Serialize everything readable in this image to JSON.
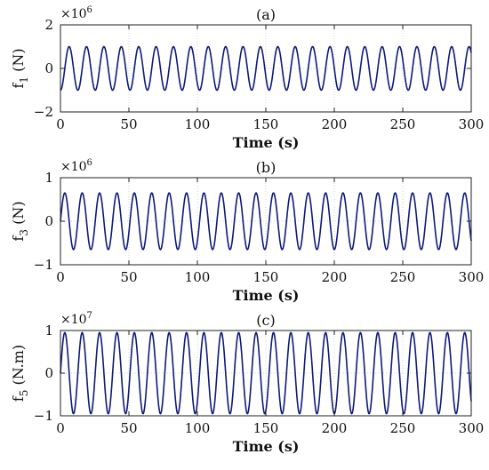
{
  "figure": {
    "line_color": "#0d1a7a",
    "grid": true
  },
  "chart_data": [
    {
      "type": "line",
      "title": "(a)",
      "xlabel": "Time (s)",
      "ylabel_main": "f",
      "ylabel_sub": "1",
      "ylabel_unit": " (N)",
      "exponent_base": "×10",
      "exponent_power": "6",
      "xlim": [
        0,
        300
      ],
      "ylim": [
        -2,
        2
      ],
      "xticks": [
        "0",
        "50",
        "100",
        "150",
        "200",
        "250",
        "300"
      ],
      "yticks": [
        "-2",
        "0",
        "2"
      ],
      "series": [
        {
          "function": "sine",
          "amplitude": 1,
          "period_s": 12.7,
          "phase_deg": -90,
          "x_range": [
            0,
            300
          ]
        }
      ]
    },
    {
      "type": "line",
      "title": "(b)",
      "xlabel": "Time (s)",
      "ylabel_main": "f",
      "ylabel_sub": "3",
      "ylabel_unit": " (N)",
      "exponent_base": "×10",
      "exponent_power": "6",
      "xlim": [
        0,
        300
      ],
      "ylim": [
        -1,
        1
      ],
      "xticks": [
        "0",
        "50",
        "100",
        "150",
        "200",
        "250",
        "300"
      ],
      "yticks": [
        "-1",
        "0",
        "1"
      ],
      "series": [
        {
          "function": "sine",
          "amplitude": 0.65,
          "period_s": 12.7,
          "phase_deg": 0,
          "x_range": [
            0,
            300
          ]
        }
      ]
    },
    {
      "type": "line",
      "title": "(c)",
      "xlabel": "Time (s)",
      "ylabel_main": "f",
      "ylabel_sub": "5",
      "ylabel_unit": " (N.m)",
      "exponent_base": "×10",
      "exponent_power": "7",
      "xlim": [
        0,
        300
      ],
      "ylim": [
        -1,
        1
      ],
      "xticks": [
        "0",
        "50",
        "100",
        "150",
        "200",
        "250",
        "300"
      ],
      "yticks": [
        "-1",
        "0",
        "1"
      ],
      "series": [
        {
          "function": "sine",
          "amplitude": 0.95,
          "period_s": 12.7,
          "phase_deg": 0,
          "x_range": [
            0,
            300
          ]
        }
      ]
    }
  ]
}
